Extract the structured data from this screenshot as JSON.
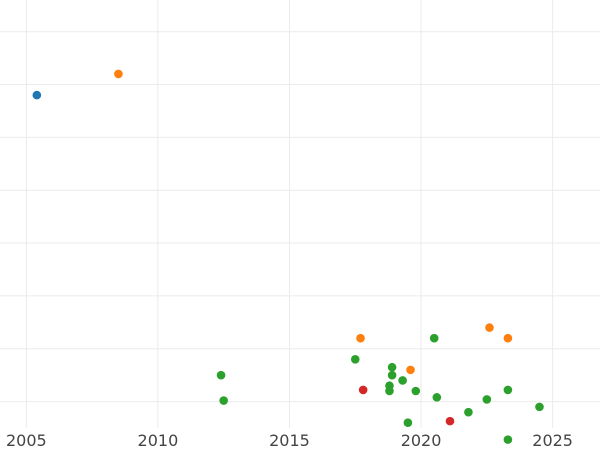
{
  "chart_data": {
    "type": "scatter",
    "title": "",
    "xlabel": "",
    "ylabel": "",
    "xlim": [
      2004,
      2026.8
    ],
    "ylim": [
      -0.5,
      7.6
    ],
    "grid": true,
    "y_tick_labels_visible": false,
    "x_ticks": [
      {
        "value": 2005,
        "label": "2005"
      },
      {
        "value": 2010,
        "label": "2010"
      },
      {
        "value": 2015,
        "label": "2015"
      },
      {
        "value": 2020,
        "label": "2020"
      },
      {
        "value": 2025,
        "label": "2025"
      }
    ],
    "y_gridlines": [
      0,
      1,
      2,
      3,
      4,
      5,
      6,
      7
    ],
    "series": [
      {
        "color": "#1f77b4",
        "points": [
          [
            2005.4,
            5.8
          ]
        ]
      },
      {
        "color": "#ff7f0e",
        "points": [
          [
            2008.5,
            6.2
          ],
          [
            2017.7,
            1.2
          ],
          [
            2019.6,
            0.6
          ],
          [
            2022.6,
            1.4
          ],
          [
            2023.3,
            1.2
          ]
        ]
      },
      {
        "color": "#2ca02c",
        "points": [
          [
            2012.4,
            0.5
          ],
          [
            2012.5,
            0.02
          ],
          [
            2017.5,
            0.8
          ],
          [
            2018.8,
            0.3
          ],
          [
            2018.8,
            0.2
          ],
          [
            2018.9,
            0.5
          ],
          [
            2018.9,
            0.65
          ],
          [
            2019.3,
            0.4
          ],
          [
            2019.5,
            -0.4
          ],
          [
            2019.8,
            0.2
          ],
          [
            2020.5,
            1.2
          ],
          [
            2020.6,
            0.08
          ],
          [
            2021.8,
            -0.2
          ],
          [
            2022.5,
            0.04
          ],
          [
            2023.3,
            0.22
          ],
          [
            2023.3,
            -0.72
          ],
          [
            2024.5,
            -0.1
          ]
        ]
      },
      {
        "color": "#d62728",
        "points": [
          [
            2017.8,
            0.22
          ],
          [
            2021.1,
            -0.37
          ]
        ]
      }
    ]
  }
}
